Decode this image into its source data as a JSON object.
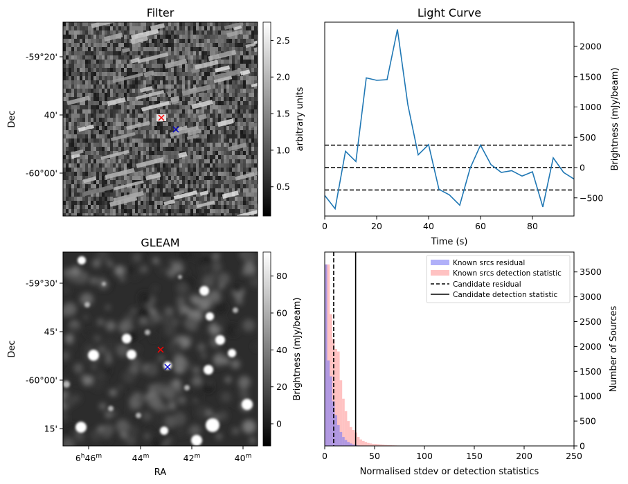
{
  "panels": {
    "filter": {
      "title": "Filter",
      "ylabel": "Dec",
      "yticks": [
        "-59°20'",
        "40'",
        "-60°00'"
      ],
      "colorbar": {
        "label": "arbitrary units",
        "ticks": [
          "0.5",
          "1.0",
          "1.5",
          "2.0",
          "2.5"
        ],
        "range": [
          0.1,
          2.75
        ]
      }
    },
    "gleam": {
      "title": "GLEAM",
      "ylabel": "Dec",
      "xlabel": "RA",
      "yticks": [
        "-59°30'",
        "45'",
        "-60°00'",
        "15'"
      ],
      "xticks": [
        {
          "main": "6",
          "sup1": "h",
          "mid": "46",
          "sup2": "m"
        },
        {
          "main": "44",
          "sup1": "",
          "mid": "",
          "sup2": "m"
        },
        {
          "main": "42",
          "sup1": "",
          "mid": "",
          "sup2": "m"
        },
        {
          "main": "40",
          "sup1": "",
          "mid": "",
          "sup2": "m"
        }
      ],
      "colorbar": {
        "label": "Brightness (mJy/beam)",
        "ticks": [
          "0",
          "20",
          "40",
          "60",
          "80"
        ],
        "range": [
          -12,
          93
        ]
      }
    },
    "lightcurve": {
      "title": "Light Curve",
      "xlabel": "Time (s)",
      "ylabel": "Brightness (mJy/beam)",
      "xticks": [
        "0",
        "20",
        "40",
        "60",
        "80"
      ],
      "yticks": [
        "−500",
        "0",
        "500",
        "1000",
        "1500",
        "2000"
      ]
    },
    "histogram": {
      "xlabel": "Normalised stdev or detection statistics",
      "ylabel": "Number of Sources",
      "xticks": [
        "0",
        "50",
        "100",
        "150",
        "200",
        "250"
      ],
      "yticks": [
        "0",
        "500",
        "1000",
        "1500",
        "2000",
        "2500",
        "3000",
        "3500"
      ],
      "legend": [
        "Known srcs residual",
        "Known srcs detection statistic",
        "Candidate residual",
        "Candidate detection statistic"
      ]
    }
  },
  "colors": {
    "line": "#1f77b4",
    "residual_hist": "#7b7bf5",
    "detection_hist": "#ff9a9a",
    "marker_red": "#ff0000",
    "marker_blue": "#0000cc"
  },
  "chart_data": [
    {
      "type": "heatmap",
      "title": "Filter",
      "ylabel": "Dec",
      "colorbar_label": "arbitrary units",
      "colorbar_range": [
        0.1,
        2.75
      ],
      "colormap": "gray"
    },
    {
      "type": "line",
      "title": "Light Curve",
      "xlabel": "Time (s)",
      "ylabel": "Brightness (mJy/beam)",
      "xlim": [
        0,
        96
      ],
      "ylim": [
        -800,
        2400
      ],
      "x": [
        0,
        4,
        8,
        12,
        16,
        20,
        24,
        28,
        32,
        36,
        40,
        44,
        48,
        52,
        56,
        60,
        64,
        68,
        72,
        76,
        80,
        84,
        88,
        92,
        96
      ],
      "y": [
        -460,
        -680,
        270,
        100,
        1480,
        1440,
        1450,
        2280,
        1040,
        210,
        380,
        -360,
        -450,
        -620,
        -10,
        370,
        50,
        -80,
        -50,
        -140,
        -70,
        -650,
        160,
        -80,
        -190
      ],
      "hlines": [
        370,
        0,
        -370
      ]
    },
    {
      "type": "heatmap",
      "title": "GLEAM",
      "xlabel": "RA",
      "ylabel": "Dec",
      "colorbar_label": "Brightness (mJy/beam)",
      "colorbar_range": [
        -12,
        93
      ],
      "colormap": "gray"
    },
    {
      "type": "bar",
      "xlabel": "Normalised stdev or detection statistics",
      "ylabel": "Number of Sources",
      "xlim": [
        0,
        250
      ],
      "ylim": [
        0,
        3900
      ],
      "bin_width": 2.5,
      "series": [
        {
          "name": "Known srcs residual",
          "values": [
            3650,
            1720,
            1400,
            900,
            620,
            420,
            280,
            180,
            120,
            80,
            50,
            30,
            20,
            10,
            5
          ]
        },
        {
          "name": "Known srcs detection statistic",
          "values": [
            3650,
            3650,
            2650,
            2150,
            1950,
            1900,
            1320,
            950,
            700,
            500,
            380,
            320,
            270,
            180,
            130,
            100,
            80,
            60,
            50,
            40,
            40,
            35,
            30,
            25,
            20,
            18,
            15,
            12,
            10,
            8,
            6,
            5,
            5,
            4,
            3,
            3,
            3,
            2,
            2,
            2
          ]
        },
        {
          "name": "Candidate residual",
          "vline": 9
        },
        {
          "name": "Candidate detection statistic",
          "vline": 31
        }
      ]
    }
  ]
}
